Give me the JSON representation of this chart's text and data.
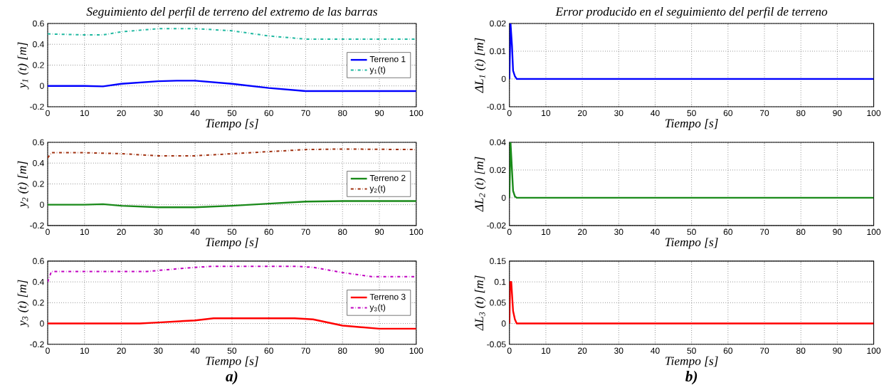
{
  "chart_data": [
    {
      "type": "line",
      "title": "Seguimiento del perfil de terreno del extremo de las barras",
      "xlabel": "Tiempo [s]",
      "ylabel": "y$_{1}$ (t) [m]",
      "xlim": [
        0,
        100
      ],
      "ylim": [
        -0.2,
        0.6
      ],
      "xticks": [
        0,
        10,
        20,
        30,
        40,
        50,
        60,
        70,
        80,
        90,
        100
      ],
      "yticks": [
        -0.2,
        0,
        0.2,
        0.4,
        0.6
      ],
      "grid": true,
      "legend": "right",
      "series": [
        {
          "name": "Terreno 1",
          "color": "#0000ff",
          "line_style": "solid",
          "x": [
            0,
            10,
            15,
            20,
            30,
            35,
            40,
            50,
            60,
            70,
            80,
            100
          ],
          "values": [
            0,
            0,
            -0.005,
            0.02,
            0.045,
            0.05,
            0.05,
            0.02,
            -0.02,
            -0.05,
            -0.05,
            -0.05
          ]
        },
        {
          "name": "y$_{1}$(t)",
          "color": "#1fb8a0",
          "line_style": "dashdot",
          "x": [
            0,
            10,
            15,
            20,
            30,
            40,
            50,
            60,
            70,
            80,
            100
          ],
          "values": [
            0.5,
            0.49,
            0.49,
            0.52,
            0.55,
            0.55,
            0.53,
            0.48,
            0.45,
            0.45,
            0.45
          ]
        }
      ]
    },
    {
      "type": "line",
      "title": "Error producido en el seguimiento del perfil de terreno",
      "xlabel": "Tiempo [s]",
      "ylabel": "ΔL$_{1}$ (t) [m]",
      "xlim": [
        0,
        100
      ],
      "ylim": [
        -0.01,
        0.02
      ],
      "xticks": [
        0,
        10,
        20,
        30,
        40,
        50,
        60,
        70,
        80,
        90,
        100
      ],
      "yticks": [
        -0.01,
        0,
        0.01,
        0.02
      ],
      "grid": true,
      "series": [
        {
          "color": "#0000ff",
          "line_style": "solid",
          "x": [
            0,
            0.3,
            0.7,
            1,
            1.5,
            2,
            100
          ],
          "values": [
            0,
            0.02,
            0.012,
            0.003,
            0.001,
            0,
            0
          ]
        }
      ]
    },
    {
      "type": "line",
      "xlabel": "Tiempo [s]",
      "ylabel": "y$_{2}$ (t) [m]",
      "xlim": [
        0,
        100
      ],
      "ylim": [
        -0.2,
        0.6
      ],
      "xticks": [
        0,
        10,
        20,
        30,
        40,
        50,
        60,
        70,
        80,
        90,
        100
      ],
      "yticks": [
        -0.2,
        0,
        0.2,
        0.4,
        0.6
      ],
      "grid": true,
      "legend": "right",
      "series": [
        {
          "name": "Terreno 2",
          "color": "#1a8a1a",
          "line_style": "solid",
          "x": [
            0,
            10,
            15,
            20,
            30,
            40,
            50,
            60,
            70,
            80,
            100
          ],
          "values": [
            0,
            0,
            0.005,
            -0.01,
            -0.025,
            -0.025,
            -0.01,
            0.01,
            0.03,
            0.035,
            0.035
          ]
        },
        {
          "name": "y$_{2}$(t)",
          "color": "#a0300f",
          "line_style": "dashdot",
          "x": [
            0,
            1,
            10,
            20,
            30,
            40,
            50,
            60,
            70,
            80,
            100
          ],
          "values": [
            0.45,
            0.5,
            0.5,
            0.49,
            0.47,
            0.47,
            0.49,
            0.51,
            0.53,
            0.535,
            0.53
          ]
        }
      ]
    },
    {
      "type": "line",
      "xlabel": "Tiempo [s]",
      "ylabel": "ΔL$_{2}$ (t) [m]",
      "xlim": [
        0,
        100
      ],
      "ylim": [
        -0.02,
        0.04
      ],
      "xticks": [
        0,
        10,
        20,
        30,
        40,
        50,
        60,
        70,
        80,
        90,
        100
      ],
      "yticks": [
        -0.02,
        0,
        0.02,
        0.04
      ],
      "grid": true,
      "series": [
        {
          "color": "#1a8a1a",
          "line_style": "solid",
          "x": [
            0,
            0.3,
            0.7,
            1,
            1.5,
            2,
            100
          ],
          "values": [
            0,
            0.04,
            0.02,
            0.005,
            0.001,
            0,
            0
          ]
        }
      ]
    },
    {
      "type": "line",
      "xlabel": "Tiempo [s]",
      "ylabel": "y$_{3}$ (t) [m]",
      "xlim": [
        0,
        100
      ],
      "ylim": [
        -0.2,
        0.6
      ],
      "xticks": [
        0,
        10,
        20,
        30,
        40,
        50,
        60,
        70,
        80,
        90,
        100
      ],
      "yticks": [
        -0.2,
        0,
        0.2,
        0.4,
        0.6
      ],
      "grid": true,
      "legend": "right",
      "annotations": [
        "**a)**"
      ],
      "series": [
        {
          "name": "Terreno 3",
          "color": "#ff0000",
          "line_style": "solid",
          "x": [
            0,
            25,
            30,
            40,
            45,
            67,
            72,
            80,
            90,
            100
          ],
          "values": [
            0,
            0,
            0.01,
            0.03,
            0.05,
            0.05,
            0.04,
            -0.02,
            -0.05,
            -0.05
          ]
        },
        {
          "name": "y$_{3}$(t)",
          "color": "#c000c0",
          "line_style": "dashdot",
          "x": [
            0,
            1,
            27,
            30,
            40,
            45,
            67,
            72,
            80,
            88,
            100
          ],
          "values": [
            0.4,
            0.5,
            0.5,
            0.51,
            0.54,
            0.55,
            0.55,
            0.54,
            0.49,
            0.45,
            0.45
          ]
        }
      ]
    },
    {
      "type": "line",
      "xlabel": "Tiempo [s]",
      "ylabel": "ΔL$_{3}$ (t) [m]",
      "xlim": [
        0,
        100
      ],
      "ylim": [
        -0.05,
        0.15
      ],
      "xticks": [
        0,
        10,
        20,
        30,
        40,
        50,
        60,
        70,
        80,
        90,
        100
      ],
      "yticks": [
        -0.05,
        0,
        0.05,
        0.1,
        0.15
      ],
      "grid": true,
      "annotations": [
        "**b)**"
      ],
      "series": [
        {
          "color": "#ff0000",
          "line_style": "solid",
          "x": [
            0,
            0.2,
            0.5,
            1,
            1.5,
            2,
            100
          ],
          "values": [
            0,
            0.1,
            0.1,
            0.03,
            0.01,
            0,
            0
          ]
        }
      ]
    }
  ]
}
